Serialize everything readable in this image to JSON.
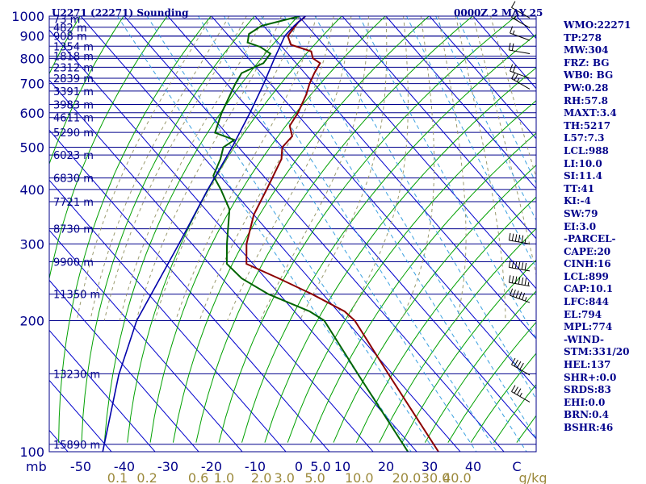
{
  "header": {
    "title": "U2271 (22271) Sounding",
    "timestamp": "0000Z  2 MAY 25"
  },
  "indices": [
    "WMO:22271",
    "TP:278",
    "MW:304",
    "FRZ: BG",
    "WB0: BG",
    "PW:0.28",
    "RH:57.8",
    "MAXT:3.4",
    "TH:5217",
    "L57:7.3",
    "LCL:988",
    "LI:10.0",
    "SI:11.4",
    "TT:41",
    "KI:-4",
    "SW:79",
    "EI:3.0",
    "-PARCEL-",
    "CAPE:20",
    "CINH:16",
    "LCL:899",
    "CAP:10.1",
    "LFC:844",
    "EL:794",
    "MPL:774",
    "-WIND-",
    "STM:331/20",
    "HEL:137",
    "SHR+:0.0",
    "SRDS:83",
    "EHI:0.0",
    "BRN:0.4",
    "BSHR:46"
  ],
  "colors": {
    "isobar": "#00008b",
    "isotherm": "#0000cd",
    "dry_adiabat": "#00a000",
    "moist_adiabat": "#9a9a6e",
    "mixing_ratio": "#3aa0e0",
    "temperature": "#8b0000",
    "dewpoint": "#006400",
    "parcel": "#0000aa",
    "text": "#00008b",
    "mixing_label": "#9c8a3c",
    "wind": "#000000"
  },
  "chart_data": {
    "type": "line",
    "title": "U2271 (22271) Sounding",
    "xlabel": "",
    "ylabel": "mb",
    "x_axis": {
      "label_prefix": "mb",
      "ticks": [
        "-50",
        "-40",
        "-30",
        "-20",
        "-10",
        "0",
        "5.0",
        "10",
        "20",
        "30",
        "40",
        "C"
      ],
      "tick_values": [
        -50,
        -40,
        -30,
        -20,
        -10,
        0,
        5,
        10,
        20,
        30,
        40,
        50
      ],
      "range": [
        -50,
        50
      ],
      "skew_note": "skew-T log-P diagram"
    },
    "y_axis": {
      "scale": "log",
      "range": [
        1000,
        100
      ],
      "pressure_levels": [
        1000,
        900,
        800,
        700,
        600,
        500,
        400,
        300,
        200,
        100
      ],
      "pressure_labels": [
        "1000",
        "900",
        "800",
        "700",
        "600",
        "500",
        "400",
        "300",
        "200",
        "100"
      ]
    },
    "height_levels": [
      {
        "p": 985,
        "label": "73 m"
      },
      {
        "p": 943,
        "label": "482 m"
      },
      {
        "p": 900,
        "label": "908 m"
      },
      {
        "p": 853,
        "label": "1354 m"
      },
      {
        "p": 809,
        "label": "1818 m"
      },
      {
        "p": 763,
        "label": "2312 m"
      },
      {
        "p": 720,
        "label": "2839 m"
      },
      {
        "p": 673,
        "label": "3391 m"
      },
      {
        "p": 627,
        "label": "3983 m"
      },
      {
        "p": 585,
        "label": "4611 m"
      },
      {
        "p": 541,
        "label": "5290 m"
      },
      {
        "p": 480,
        "label": "6023 m"
      },
      {
        "p": 425,
        "label": "6830 m"
      },
      {
        "p": 375,
        "label": "7721 m"
      },
      {
        "p": 325,
        "label": "8730 m"
      },
      {
        "p": 273,
        "label": "9900 m"
      },
      {
        "p": 230,
        "label": "11350 m"
      },
      {
        "p": 151,
        "label": "13230 m"
      },
      {
        "p": 104,
        "label": "15890 m"
      }
    ],
    "mixing_ratio_labels": [
      "0.1",
      "0.2",
      "0.6",
      "1.0",
      "2.0",
      "3.0",
      "5.0",
      "10.0",
      "20.0",
      "30.0",
      "40.0",
      "g/kg"
    ],
    "mixing_ratio_values": [
      0.1,
      0.2,
      0.6,
      1.0,
      2.0,
      3.0,
      5.0,
      10.0,
      20.0,
      30.0,
      40.0
    ],
    "series": [
      {
        "key": "temperature",
        "points": [
          {
            "p": 1000,
            "t": 1.5
          },
          {
            "p": 985,
            "t": 0.3
          },
          {
            "p": 970,
            "t": -1.2
          },
          {
            "p": 930,
            "t": -4.2
          },
          {
            "p": 900,
            "t": -6.5
          },
          {
            "p": 860,
            "t": -7.5
          },
          {
            "p": 830,
            "t": -4.2
          },
          {
            "p": 800,
            "t": -5.2
          },
          {
            "p": 780,
            "t": -4.5
          },
          {
            "p": 740,
            "t": -7.8
          },
          {
            "p": 700,
            "t": -11.0
          },
          {
            "p": 660,
            "t": -14.0
          },
          {
            "p": 600,
            "t": -19.5
          },
          {
            "p": 560,
            "t": -24.0
          },
          {
            "p": 530,
            "t": -25.5
          },
          {
            "p": 500,
            "t": -30.0
          },
          {
            "p": 470,
            "t": -32.5
          },
          {
            "p": 400,
            "t": -42.0
          },
          {
            "p": 350,
            "t": -50.0
          },
          {
            "p": 300,
            "t": -57.5
          },
          {
            "p": 270,
            "t": -61.5
          },
          {
            "p": 250,
            "t": -57.0
          },
          {
            "p": 230,
            "t": -52.5
          },
          {
            "p": 210,
            "t": -48.5
          },
          {
            "p": 200,
            "t": -48.0
          },
          {
            "p": 150,
            "t": -51.0
          },
          {
            "p": 100,
            "t": -55.0
          }
        ]
      },
      {
        "key": "dewpoint",
        "points": [
          {
            "p": 1000,
            "t": 0.2
          },
          {
            "p": 975,
            "t": -5.0
          },
          {
            "p": 950,
            "t": -10.5
          },
          {
            "p": 910,
            "t": -15.0
          },
          {
            "p": 870,
            "t": -17.0
          },
          {
            "p": 850,
            "t": -15.0
          },
          {
            "p": 820,
            "t": -14.0
          },
          {
            "p": 780,
            "t": -17.5
          },
          {
            "p": 740,
            "t": -24.5
          },
          {
            "p": 700,
            "t": -28.0
          },
          {
            "p": 600,
            "t": -37.0
          },
          {
            "p": 540,
            "t": -42.5
          },
          {
            "p": 520,
            "t": -39.5
          },
          {
            "p": 500,
            "t": -43.5
          },
          {
            "p": 470,
            "t": -46.5
          },
          {
            "p": 430,
            "t": -51.5
          },
          {
            "p": 400,
            "t": -52.5
          },
          {
            "p": 360,
            "t": -54.5
          },
          {
            "p": 300,
            "t": -62.0
          },
          {
            "p": 270,
            "t": -66.0
          },
          {
            "p": 250,
            "t": -65.5
          },
          {
            "p": 230,
            "t": -62.5
          },
          {
            "p": 210,
            "t": -56.5
          },
          {
            "p": 200,
            "t": -55.0
          },
          {
            "p": 150,
            "t": -58.0
          },
          {
            "p": 100,
            "t": -62.0
          }
        ]
      },
      {
        "key": "parcel",
        "points": [
          {
            "p": 1000,
            "t": 1.5
          },
          {
            "p": 950,
            "t": -3.0
          },
          {
            "p": 900,
            "t": -7.2
          },
          {
            "p": 850,
            "t": -10.5
          },
          {
            "p": 800,
            "t": -14.0
          },
          {
            "p": 700,
            "t": -21.5
          },
          {
            "p": 600,
            "t": -30.5
          },
          {
            "p": 500,
            "t": -41.5
          },
          {
            "p": 400,
            "t": -55.5
          },
          {
            "p": 300,
            "t": -73.0
          },
          {
            "p": 200,
            "t": -98.0
          },
          {
            "p": 150,
            "t": -113.0
          },
          {
            "p": 100,
            "t": -132.0
          }
        ]
      }
    ],
    "wind_barbs": [
      {
        "p": 990,
        "dir": 300,
        "kt": 10
      },
      {
        "p": 940,
        "dir": 300,
        "kt": 15
      },
      {
        "p": 880,
        "dir": 290,
        "kt": 15
      },
      {
        "p": 820,
        "dir": 280,
        "kt": 20
      },
      {
        "p": 720,
        "dir": 290,
        "kt": 20
      },
      {
        "p": 680,
        "dir": 300,
        "kt": 25
      },
      {
        "p": 300,
        "dir": 280,
        "kt": 55
      },
      {
        "p": 260,
        "dir": 280,
        "kt": 60
      },
      {
        "p": 240,
        "dir": 280,
        "kt": 65
      },
      {
        "p": 220,
        "dir": 290,
        "kt": 55
      },
      {
        "p": 150,
        "dir": 300,
        "kt": 40
      },
      {
        "p": 130,
        "dir": 300,
        "kt": 35
      }
    ]
  }
}
